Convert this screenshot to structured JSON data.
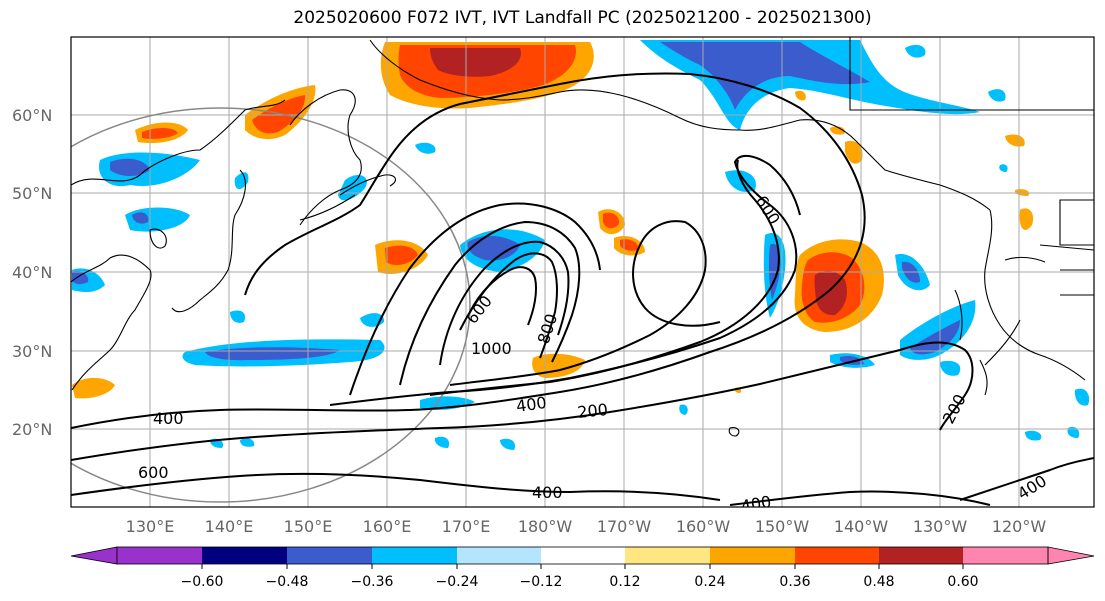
{
  "title": "2025020600 F072 IVT, IVT Landfall PC (2025021200 - 2025021300)",
  "latitude_labels": [
    "60°N",
    "50°N",
    "40°N",
    "30°N",
    "20°N"
  ],
  "longitude_labels": [
    "130°E",
    "140°E",
    "150°E",
    "160°E",
    "170°E",
    "180°W",
    "170°W",
    "160°W",
    "150°W",
    "140°W",
    "130°W",
    "120°W"
  ],
  "contour_labels": [
    "600",
    "800",
    "1000",
    "400",
    "200",
    "600",
    "400",
    "200",
    "400",
    "600",
    "400",
    "400"
  ],
  "colorbar": {
    "ticks": [
      "−0.60",
      "−0.48",
      "−0.36",
      "−0.24",
      "−0.12",
      "0.12",
      "0.24",
      "0.36",
      "0.48",
      "0.60"
    ],
    "colors": [
      "#9932cc",
      "#000080",
      "#3a5ccc",
      "#00bfff",
      "#b3e5ff",
      "#ffffff",
      "#ffe680",
      "#ffa500",
      "#ff4500",
      "#b22222",
      "#ff85b0"
    ]
  },
  "colors": {
    "contour": "#000000",
    "grid": "#aaaaaa",
    "coast": "#000000"
  }
}
